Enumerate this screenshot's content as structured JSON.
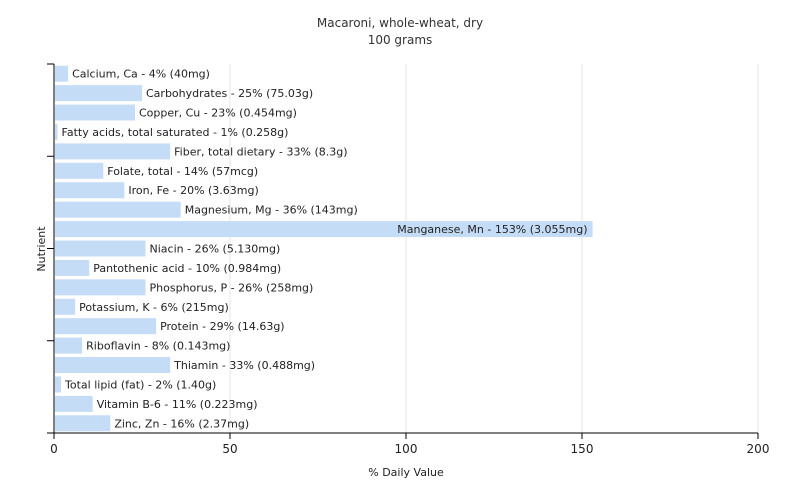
{
  "chart_data": {
    "type": "bar",
    "orientation": "horizontal",
    "title": "Macaroni, whole-wheat, dry",
    "subtitle": "100 grams",
    "xlabel": "% Daily Value",
    "ylabel": "Nutrient",
    "xlim": [
      0,
      200
    ],
    "xticks": [
      0,
      50,
      100,
      150,
      200
    ],
    "grid": "vertical",
    "bar_color": "#c5dcf7",
    "categories": [
      "Calcium, Ca",
      "Carbohydrates",
      "Copper, Cu",
      "Fatty acids, total saturated",
      "Fiber, total dietary",
      "Folate, total",
      "Iron, Fe",
      "Magnesium, Mg",
      "Manganese, Mn",
      "Niacin",
      "Pantothenic acid",
      "Phosphorus, P",
      "Potassium, K",
      "Protein",
      "Riboflavin",
      "Thiamin",
      "Total lipid (fat)",
      "Vitamin B-6",
      "Zinc, Zn"
    ],
    "values": [
      4,
      25,
      23,
      1,
      33,
      14,
      20,
      36,
      153,
      26,
      10,
      26,
      6,
      29,
      8,
      33,
      2,
      11,
      16
    ],
    "amounts": [
      "40mg",
      "75.03g",
      "0.454mg",
      "0.258g",
      "8.3g",
      "57mcg",
      "3.63mg",
      "143mg",
      "3.055mg",
      "5.130mg",
      "0.984mg",
      "258mg",
      "215mg",
      "14.63g",
      "0.143mg",
      "0.488mg",
      "1.40g",
      "0.223mg",
      "2.37mg"
    ],
    "labels": [
      "Calcium, Ca - 4% (40mg)",
      "Carbohydrates - 25% (75.03g)",
      "Copper, Cu - 23% (0.454mg)",
      "Fatty acids, total saturated - 1% (0.258g)",
      "Fiber, total dietary - 33% (8.3g)",
      "Folate, total - 14% (57mcg)",
      "Iron, Fe - 20% (3.63mg)",
      "Magnesium, Mg - 36% (143mg)",
      "Manganese, Mn - 153% (3.055mg)",
      "Niacin - 26% (5.130mg)",
      "Pantothenic acid - 10% (0.984mg)",
      "Phosphorus, P - 26% (258mg)",
      "Potassium, K - 6% (215mg)",
      "Protein - 29% (14.63g)",
      "Riboflavin - 8% (0.143mg)",
      "Thiamin - 33% (0.488mg)",
      "Total lipid (fat) - 2% (1.40g)",
      "Vitamin B-6 - 11% (0.223mg)",
      "Zinc, Zn - 16% (2.37mg)"
    ]
  }
}
